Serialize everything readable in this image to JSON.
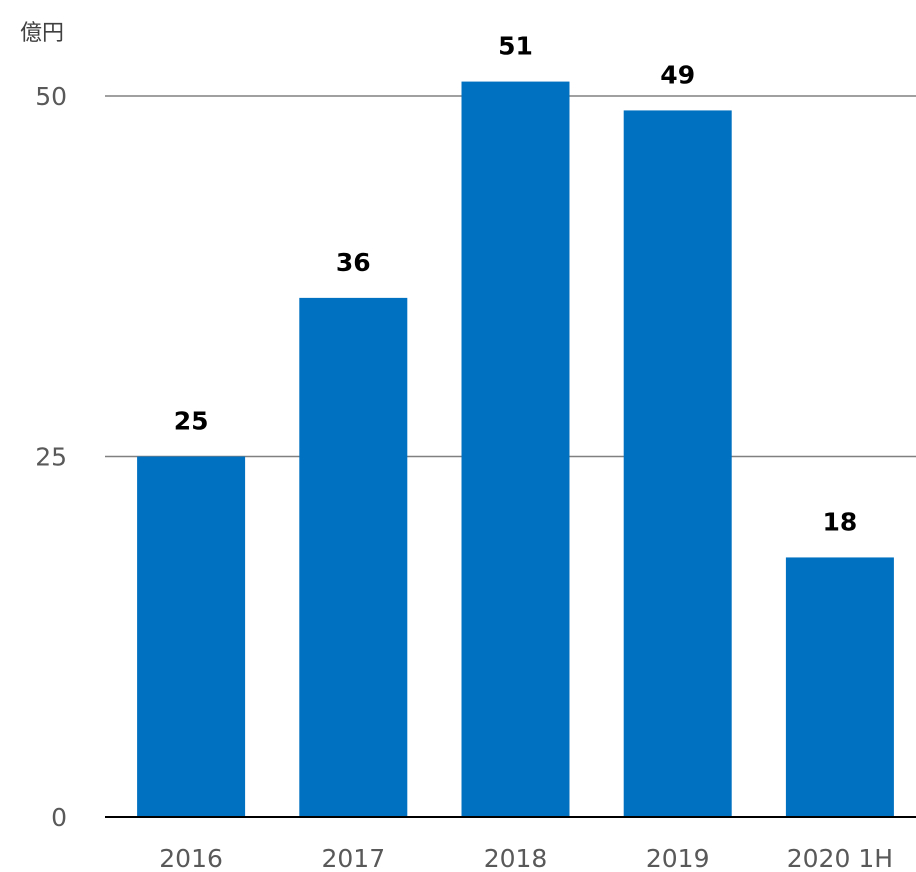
{
  "chart_data": {
    "type": "bar",
    "unit_label": "億円",
    "categories": [
      "2016",
      "2017",
      "2018",
      "2019",
      "2020 1H"
    ],
    "values": [
      25,
      36,
      51,
      49,
      18
    ],
    "data_labels": [
      "25",
      "36",
      "51",
      "49",
      "18"
    ],
    "y_ticks": [
      0,
      25,
      50
    ],
    "ylim": [
      0,
      50
    ],
    "grid": true,
    "bar_color": "#0070C0",
    "grid_color": "#808080",
    "axis_color": "#000000"
  }
}
